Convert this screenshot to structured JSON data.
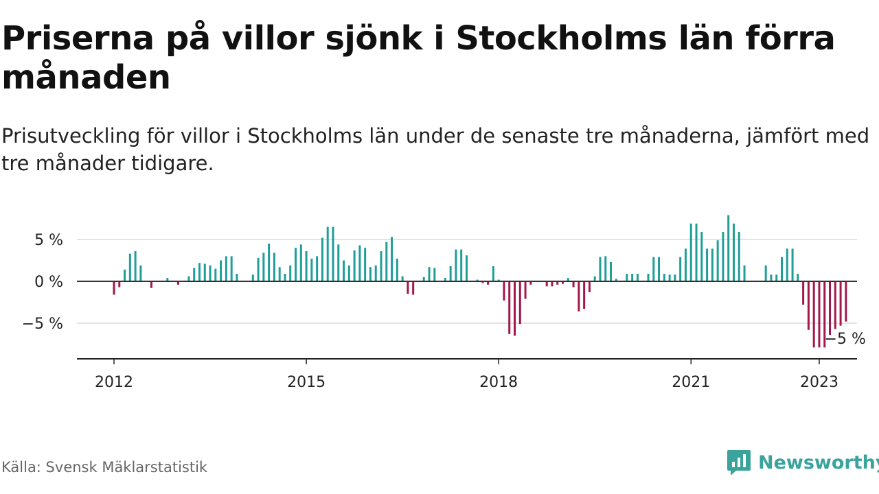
{
  "header": {
    "title": "Priserna på villor sjönk i Stockholms län förra månaden",
    "subtitle": "Prisutveckling för villor i Stockholms län under de senaste tre månaderna, jämfört med tre månader tidigare."
  },
  "footer": {
    "source": "Källa: Svensk Mäklarstatistik",
    "brand": "Newsworthy",
    "brand_icon": "newsworthy-chart-logo-icon"
  },
  "colors": {
    "positive": "#1f9e97",
    "negative": "#a3174a",
    "brand": "#3aa39b"
  },
  "chart_data": {
    "type": "bar",
    "title": "",
    "xlabel": "",
    "ylabel": "",
    "unit": "%",
    "ylim": [
      -9,
      10
    ],
    "x_tick_labels": [
      "2012",
      "2015",
      "2018",
      "2021",
      "2023"
    ],
    "y_tick_labels": [
      "5 %",
      "0 %",
      "−5 %"
    ],
    "y_ticks": [
      5,
      0,
      -5
    ],
    "grid": true,
    "last_value_label": "−5 %",
    "series": [
      {
        "start_month": "2012-01",
        "values": [
          -1.6,
          -0.7,
          1.4,
          3.3,
          3.6,
          1.9,
          0,
          -0.8,
          0,
          0,
          0.4,
          0,
          -0.4,
          0,
          0.6,
          1.6,
          2.2,
          2.1,
          1.9,
          1.5,
          2.5,
          3.0,
          3.0,
          0.9,
          0,
          0,
          0.8,
          2.8,
          3.4,
          4.5,
          3.4,
          1.7,
          0.9,
          1.9,
          4.0,
          4.4,
          3.6,
          2.7,
          3.0,
          5.2,
          6.5,
          6.5,
          4.4,
          2.5,
          1.9,
          3.7,
          4.3,
          4.0,
          1.7,
          1.9,
          3.6,
          4.7,
          5.3,
          2.7,
          0.6,
          -1.5,
          -1.6,
          0,
          0.5,
          1.7,
          1.6,
          0,
          0.4,
          1.8,
          3.8,
          3.8,
          3.1,
          0,
          0.2,
          -0.2,
          -0.4,
          1.8,
          0.2,
          -2.3,
          -6.3,
          -6.5,
          -5.1,
          -2.1,
          -0.4,
          0,
          0,
          -0.6,
          -0.6,
          -0.4,
          -0.3,
          0.4,
          -0.7,
          -3.6,
          -3.3,
          -1.3,
          0.6,
          2.9,
          3.0,
          2.3,
          0.3,
          0,
          0.9,
          0.9,
          0.9,
          0,
          0.9,
          2.9,
          2.9,
          0.9,
          0.8,
          0.8,
          2.9,
          3.9,
          6.9,
          6.9,
          5.9,
          3.9,
          3.9,
          4.9,
          5.9,
          7.9,
          6.9,
          5.9,
          1.9,
          0,
          0,
          0,
          1.9,
          0.8,
          0.8,
          2.9,
          3.9,
          3.9,
          0.9,
          -2.8,
          -5.8,
          -7.9,
          -7.9,
          -7.9,
          -6.4,
          -5.7,
          -5.3,
          -4.8
        ]
      }
    ]
  }
}
